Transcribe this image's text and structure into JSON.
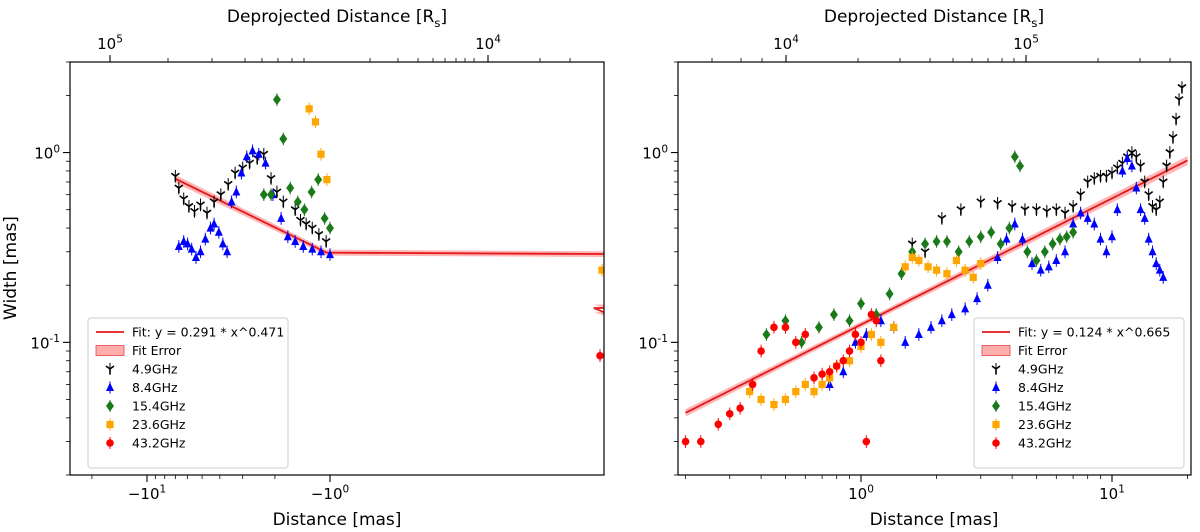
{
  "chart_data": [
    {
      "type": "scatter",
      "panel": "left",
      "xlabel": "Distance [mas]",
      "ylabel": "Width [mas]",
      "top_xlabel": "Deprojected Distance [R_s]",
      "xscale": "symlog (negative distances)",
      "yscale": "log",
      "ylim": [
        0.02,
        3.0
      ],
      "x_ticks": [
        "-10^1",
        "-10^0"
      ],
      "top_x_ticks": [
        "10^5",
        "10^4"
      ],
      "y_ticks": [
        "10^0",
        "10^-1"
      ],
      "legend_placement": "lower-left",
      "fit": {
        "label": "Fit: y = 0.291 * x^0.471",
        "a": 0.291,
        "b": 0.471,
        "x_range": [
          -7.0,
          -0.22
        ]
      },
      "fit_error_label": "Fit Error",
      "series": [
        {
          "name": "4.9GHz",
          "color": "#000000",
          "marker": "tri_down",
          "x": [
            -7.0,
            -6.7,
            -6.3,
            -5.9,
            -5.5,
            -5.1,
            -4.7,
            -4.3,
            -3.95,
            -3.6,
            -3.3,
            -3.0,
            -2.75,
            -2.5,
            -2.3,
            -2.1,
            -1.95,
            -1.8,
            -1.55,
            -1.45,
            -1.35,
            -1.25,
            -1.15,
            -1.05
          ],
          "y": [
            0.75,
            0.65,
            0.57,
            0.52,
            0.49,
            0.53,
            0.48,
            0.55,
            0.6,
            0.68,
            0.78,
            0.83,
            0.88,
            0.93,
            0.98,
            0.73,
            0.62,
            0.55,
            0.5,
            0.44,
            0.42,
            0.4,
            0.37,
            0.34
          ]
        },
        {
          "name": "8.4GHz",
          "color": "#0000ff",
          "marker": "triangle",
          "x": [
            -6.7,
            -6.3,
            -6.0,
            -5.7,
            -5.4,
            -5.1,
            -4.8,
            -4.5,
            -4.3,
            -4.05,
            -3.85,
            -3.65,
            -3.45,
            -3.25,
            -3.05,
            -2.85,
            -2.65,
            -2.45,
            -2.25,
            -2.05,
            -1.85,
            -1.7,
            -1.55,
            -1.4,
            -1.25,
            -1.12,
            -1.0
          ],
          "y": [
            0.32,
            0.34,
            0.33,
            0.31,
            0.28,
            0.3,
            0.35,
            0.4,
            0.42,
            0.38,
            0.33,
            0.3,
            0.55,
            0.62,
            0.78,
            0.95,
            1.02,
            0.98,
            0.88,
            0.6,
            0.45,
            0.36,
            0.34,
            0.32,
            0.31,
            0.3,
            0.29
          ]
        },
        {
          "name": "15.4GHz",
          "color": "#1a7a1a",
          "marker": "diamond",
          "x": [
            -2.3,
            -2.1,
            -1.95,
            -1.8,
            -1.65,
            -1.5,
            -1.38,
            -1.26,
            -1.16,
            -1.07,
            -1.0,
            -0.92,
            -0.83,
            -0.72,
            -0.6,
            -0.48,
            -0.38,
            -0.3
          ],
          "y": [
            0.6,
            0.6,
            1.9,
            1.18,
            0.65,
            0.55,
            0.5,
            0.62,
            0.72,
            0.45,
            0.4,
            0.26,
            0.2,
            0.16,
            0.15,
            0.16,
            0.18,
            0.23
          ]
        },
        {
          "name": "23.6GHz",
          "color": "#ffa500",
          "marker": "square",
          "x": [
            -1.3,
            -1.2,
            -1.12,
            -1.04,
            -0.97,
            -0.9,
            -0.83,
            -0.76,
            -0.68,
            -0.6,
            -0.52,
            -0.44,
            -0.36,
            -0.3,
            -0.26,
            -0.23
          ],
          "y": [
            1.7,
            1.45,
            0.98,
            0.72,
            0.5,
            0.4,
            0.28,
            0.2,
            0.15,
            0.105,
            0.082,
            0.078,
            0.08,
            0.23,
            0.24,
            0.24
          ]
        },
        {
          "name": "43.2GHz",
          "color": "#ff0000",
          "marker": "circle",
          "x": [
            -0.32,
            -0.27,
            -0.235,
            -0.215,
            -0.2,
            -0.19,
            -0.18
          ],
          "y": [
            0.19,
            0.12,
            0.085,
            0.055,
            0.2,
            0.21,
            0.2
          ]
        }
      ]
    },
    {
      "type": "scatter",
      "panel": "right",
      "xlabel": "Distance [mas]",
      "top_xlabel": "Deprojected Distance [R_s]",
      "xscale": "log",
      "yscale": "log",
      "xlim": [
        0.18,
        25
      ],
      "ylim": [
        0.02,
        3.0
      ],
      "x_ticks": [
        "10^0",
        "10^1"
      ],
      "top_x_ticks": [
        "10^4",
        "10^5"
      ],
      "y_ticks": [
        "10^0",
        "10^-1"
      ],
      "legend_placement": "lower-right",
      "fit": {
        "label": "Fit: y = 0.124 * x^0.665",
        "a": 0.124,
        "b": 0.665,
        "x_range": [
          0.2,
          20
        ]
      },
      "fit_error_label": "Fit Error",
      "series": [
        {
          "name": "4.9GHz",
          "color": "#000000",
          "marker": "tri_down",
          "x": [
            1.6,
            1.8,
            2.1,
            2.5,
            3.0,
            3.5,
            4.0,
            4.5,
            5.0,
            5.5,
            6.0,
            6.5,
            7.0,
            7.5,
            8.0,
            8.5,
            9.0,
            9.5,
            10.0,
            10.5,
            11.0,
            11.5,
            12.0,
            12.5,
            13.0,
            13.5,
            14.0,
            14.5,
            15.0,
            15.5,
            16.0,
            16.5,
            17.0,
            17.5,
            18.0,
            18.5,
            19.0
          ],
          "y": [
            0.33,
            0.3,
            0.45,
            0.5,
            0.55,
            0.54,
            0.52,
            0.5,
            0.5,
            0.49,
            0.5,
            0.48,
            0.52,
            0.6,
            0.7,
            0.73,
            0.75,
            0.75,
            0.78,
            0.83,
            0.88,
            0.95,
            1.0,
            0.95,
            0.85,
            0.7,
            0.6,
            0.52,
            0.5,
            0.55,
            0.7,
            0.85,
            1.0,
            1.2,
            1.5,
            1.9,
            2.2
          ]
        },
        {
          "name": "8.4GHz",
          "color": "#0000ff",
          "marker": "triangle",
          "x": [
            0.75,
            0.85,
            0.95,
            1.05,
            1.2,
            1.35,
            1.5,
            1.7,
            1.9,
            2.1,
            2.3,
            2.6,
            2.9,
            3.2,
            3.5,
            3.8,
            4.1,
            4.4,
            4.8,
            5.2,
            5.6,
            6.0,
            6.5,
            7.0,
            7.5,
            8.0,
            8.5,
            9.0,
            9.5,
            10.0,
            10.5,
            11.0,
            11.5,
            12.0,
            12.5,
            13.0,
            13.5,
            14.0,
            14.5,
            15.0,
            15.5,
            16.0
          ],
          "y": [
            0.06,
            0.07,
            0.1,
            0.11,
            0.13,
            0.12,
            0.1,
            0.11,
            0.12,
            0.13,
            0.14,
            0.15,
            0.17,
            0.2,
            0.28,
            0.35,
            0.42,
            0.35,
            0.26,
            0.24,
            0.25,
            0.27,
            0.3,
            0.42,
            0.48,
            0.45,
            0.42,
            0.35,
            0.3,
            0.36,
            0.5,
            0.8,
            0.93,
            0.85,
            0.65,
            0.5,
            0.45,
            0.35,
            0.3,
            0.26,
            0.24,
            0.22
          ]
        },
        {
          "name": "15.4GHz",
          "color": "#1a7a1a",
          "marker": "diamond",
          "x": [
            0.42,
            0.5,
            0.58,
            0.68,
            0.78,
            0.9,
            1.0,
            1.15,
            1.3,
            1.45,
            1.6,
            1.8,
            2.0,
            2.2,
            2.45,
            2.7,
            3.0,
            3.3,
            3.6,
            3.9,
            4.1,
            4.3,
            4.6,
            5.0,
            5.4,
            5.8,
            6.2,
            6.6,
            7.0
          ],
          "y": [
            0.11,
            0.13,
            0.1,
            0.12,
            0.14,
            0.13,
            0.16,
            0.14,
            0.18,
            0.23,
            0.3,
            0.33,
            0.34,
            0.34,
            0.3,
            0.34,
            0.36,
            0.38,
            0.33,
            0.4,
            0.95,
            0.85,
            0.3,
            0.27,
            0.3,
            0.33,
            0.35,
            0.36,
            0.38
          ]
        },
        {
          "name": "23.6GHz",
          "color": "#ffa500",
          "marker": "square",
          "x": [
            0.36,
            0.4,
            0.45,
            0.5,
            0.55,
            0.6,
            0.65,
            0.7,
            0.75,
            0.8,
            0.9,
            1.0,
            1.1,
            1.2,
            1.35,
            1.5,
            1.6,
            1.7,
            1.85,
            2.0,
            2.2,
            2.4,
            2.6,
            2.8,
            3.0
          ],
          "y": [
            0.055,
            0.05,
            0.047,
            0.05,
            0.055,
            0.06,
            0.055,
            0.06,
            0.065,
            0.075,
            0.08,
            0.095,
            0.11,
            0.1,
            0.12,
            0.25,
            0.28,
            0.27,
            0.25,
            0.24,
            0.23,
            0.27,
            0.24,
            0.22,
            0.26
          ]
        },
        {
          "name": "43.2GHz",
          "color": "#ff0000",
          "marker": "circle",
          "x": [
            0.2,
            0.23,
            0.27,
            0.3,
            0.33,
            0.37,
            0.4,
            0.45,
            0.5,
            0.55,
            0.6,
            0.65,
            0.7,
            0.75,
            0.8,
            0.85,
            0.9,
            0.95,
            1.0,
            1.05,
            1.1,
            1.15,
            1.2
          ],
          "y": [
            0.03,
            0.03,
            0.037,
            0.042,
            0.045,
            0.06,
            0.09,
            0.12,
            0.12,
            0.1,
            0.11,
            0.065,
            0.068,
            0.07,
            0.075,
            0.08,
            0.09,
            0.11,
            0.1,
            0.03,
            0.14,
            0.13,
            0.08
          ]
        }
      ]
    }
  ]
}
